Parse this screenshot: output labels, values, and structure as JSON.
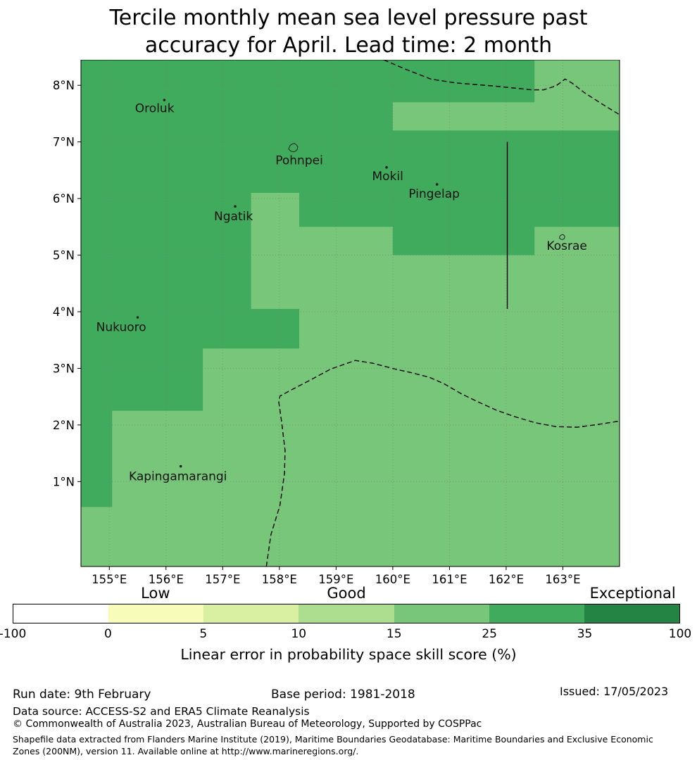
{
  "title": {
    "line1": "Tercile monthly mean sea level pressure past",
    "line2": "accuracy for April. Lead time: 2 month"
  },
  "chart_data": {
    "type": "heatmap",
    "title": "Tercile monthly mean sea level pressure past accuracy for April. Lead time: 2 month",
    "x_axis": {
      "range": [
        154.5,
        164.0
      ],
      "ticks": [
        {
          "value": 155,
          "label": "155°E"
        },
        {
          "value": 156,
          "label": "156°E"
        },
        {
          "value": 157,
          "label": "157°E"
        },
        {
          "value": 158,
          "label": "158°E"
        },
        {
          "value": 159,
          "label": "159°E"
        },
        {
          "value": 160,
          "label": "160°E"
        },
        {
          "value": 161,
          "label": "161°E"
        },
        {
          "value": 162,
          "label": "162°E"
        },
        {
          "value": 163,
          "label": "163°E"
        }
      ]
    },
    "y_axis": {
      "range": [
        -0.5,
        8.45
      ],
      "ticks": [
        {
          "value": 1,
          "label": "1°N"
        },
        {
          "value": 2,
          "label": "2°N"
        },
        {
          "value": 3,
          "label": "3°N"
        },
        {
          "value": 4,
          "label": "4°N"
        },
        {
          "value": 5,
          "label": "5°N"
        },
        {
          "value": 6,
          "label": "6°N"
        },
        {
          "value": 7,
          "label": "7°N"
        },
        {
          "value": 8,
          "label": "8°N"
        }
      ]
    },
    "categories": [
      {
        "id": "neg100-0",
        "min": -100,
        "max": 0,
        "color": "#ffffff"
      },
      {
        "id": "0-5",
        "min": 0,
        "max": 5,
        "color": "#f7fcb9"
      },
      {
        "id": "5-10",
        "min": 5,
        "max": 10,
        "color": "#d9f0a3"
      },
      {
        "id": "10-15",
        "min": 10,
        "max": 15,
        "color": "#addd8e"
      },
      {
        "id": "15-25",
        "min": 15,
        "max": 25,
        "color": "#78c679"
      },
      {
        "id": "25-35",
        "min": 25,
        "max": 35,
        "color": "#41ab5d"
      },
      {
        "id": "35-100",
        "min": 35,
        "max": 100,
        "color": "#238443"
      }
    ],
    "base_region": {
      "name": "skill-region-15-25-background",
      "category": "15-25"
    },
    "regions": [
      {
        "name": "skill-region-25-35",
        "category": "25-35",
        "polygon": [
          [
            154.5,
            8.45
          ],
          [
            162.5,
            8.45
          ],
          [
            162.5,
            7.7
          ],
          [
            160.0,
            7.7
          ],
          [
            160.0,
            7.2
          ],
          [
            164.0,
            7.2
          ],
          [
            164.0,
            5.5
          ],
          [
            162.5,
            5.5
          ],
          [
            162.5,
            5.0
          ],
          [
            160.0,
            5.0
          ],
          [
            160.0,
            5.5
          ],
          [
            158.35,
            5.5
          ],
          [
            158.35,
            6.1
          ],
          [
            157.5,
            6.1
          ],
          [
            157.5,
            4.05
          ],
          [
            158.35,
            4.05
          ],
          [
            158.35,
            3.35
          ],
          [
            156.65,
            3.35
          ],
          [
            156.65,
            2.25
          ],
          [
            155.05,
            2.25
          ],
          [
            155.05,
            0.55
          ],
          [
            154.5,
            0.55
          ]
        ]
      }
    ],
    "boundaries": [
      {
        "name": "eez-boundary-north",
        "style": "dashed",
        "points": [
          [
            159.84,
            8.45
          ],
          [
            160.21,
            8.29
          ],
          [
            160.67,
            8.11
          ],
          [
            161.12,
            8.04
          ],
          [
            161.76,
            7.99
          ],
          [
            162.45,
            7.92
          ],
          [
            162.66,
            7.92
          ],
          [
            162.88,
            7.99
          ],
          [
            163.04,
            8.11
          ],
          [
            163.16,
            8.04
          ],
          [
            163.38,
            7.87
          ],
          [
            163.69,
            7.67
          ],
          [
            164.0,
            7.48
          ]
        ]
      },
      {
        "name": "eez-boundary-south",
        "style": "dashed",
        "points": [
          [
            157.77,
            -0.5
          ],
          [
            157.85,
            0.06
          ],
          [
            158.01,
            0.58
          ],
          [
            158.09,
            1.15
          ],
          [
            158.1,
            1.55
          ],
          [
            158.04,
            2.05
          ],
          [
            157.99,
            2.4
          ],
          [
            158.01,
            2.51
          ],
          [
            158.23,
            2.63
          ],
          [
            158.54,
            2.79
          ],
          [
            158.91,
            2.99
          ],
          [
            159.34,
            3.14
          ],
          [
            159.65,
            3.09
          ],
          [
            160.03,
            2.99
          ],
          [
            160.34,
            2.92
          ],
          [
            160.65,
            2.84
          ],
          [
            160.9,
            2.73
          ],
          [
            161.21,
            2.55
          ],
          [
            161.52,
            2.4
          ],
          [
            161.83,
            2.26
          ],
          [
            162.14,
            2.15
          ],
          [
            162.51,
            2.04
          ],
          [
            162.88,
            1.97
          ],
          [
            163.25,
            1.96
          ],
          [
            163.63,
            2.01
          ],
          [
            164.0,
            2.07
          ]
        ]
      },
      {
        "name": "boundary-solid-162e",
        "style": "solid",
        "points": [
          [
            162.02,
            7.0
          ],
          [
            162.02,
            4.05
          ]
        ]
      }
    ],
    "places": [
      {
        "name": "Oroluk",
        "label_lon": 155.8,
        "label_lat": 7.6,
        "marker_lon": 155.97,
        "marker_lat": 7.74,
        "marker": "dot"
      },
      {
        "name": "Pohnpei",
        "label_lon": 158.35,
        "label_lat": 6.68,
        "marker_lon": 158.25,
        "marker_lat": 6.9,
        "marker": "island-large"
      },
      {
        "name": "Mokil",
        "label_lon": 159.91,
        "label_lat": 6.4,
        "marker_lon": 159.89,
        "marker_lat": 6.55,
        "marker": "dot"
      },
      {
        "name": "Pingelap",
        "label_lon": 160.73,
        "label_lat": 6.09,
        "marker_lon": 160.78,
        "marker_lat": 6.25,
        "marker": "dot"
      },
      {
        "name": "Ngatik",
        "label_lon": 157.19,
        "label_lat": 5.69,
        "marker_lon": 157.22,
        "marker_lat": 5.86,
        "marker": "dot"
      },
      {
        "name": "Kosrae",
        "label_lon": 163.07,
        "label_lat": 5.17,
        "marker_lon": 162.99,
        "marker_lat": 5.32,
        "marker": "island-small"
      },
      {
        "name": "Nukuoro",
        "label_lon": 155.21,
        "label_lat": 3.73,
        "marker_lon": 155.5,
        "marker_lat": 3.9,
        "marker": "dot"
      },
      {
        "name": "Kapingamarangi",
        "label_lon": 156.21,
        "label_lat": 1.1,
        "marker_lon": 156.26,
        "marker_lat": 1.27,
        "marker": "dot"
      }
    ],
    "colorbar": {
      "tick_labels": [
        "-100",
        "0",
        "5",
        "10",
        "15",
        "25",
        "35",
        "100"
      ],
      "qualitative_labels": [
        {
          "text": "Low",
          "pos": 0.214
        },
        {
          "text": "Good",
          "pos": 0.5
        },
        {
          "text": "Exceptional",
          "pos": 0.929
        }
      ],
      "label": "Linear error in probability space skill score (%)"
    }
  },
  "footer": {
    "run_date": "Run date: 9th February",
    "base_period": "Base period: 1981-2018",
    "issued": "Issued: 17/05/2023",
    "data_source": "Data source: ACCESS-S2 and ERA5 Climate Reanalysis",
    "copyright": "© Commonwealth of Australia 2023, Australian Bureau of Meteorology, Supported by COSPPac",
    "shapefile_note": "Shapefile data extracted from Flanders Marine Institute (2019), Maritime Boundaries Geodatabase: Maritime Boundaries and Exclusive Economic Zones (200NM), version 11. Available online at http://www.marineregions.org/."
  }
}
